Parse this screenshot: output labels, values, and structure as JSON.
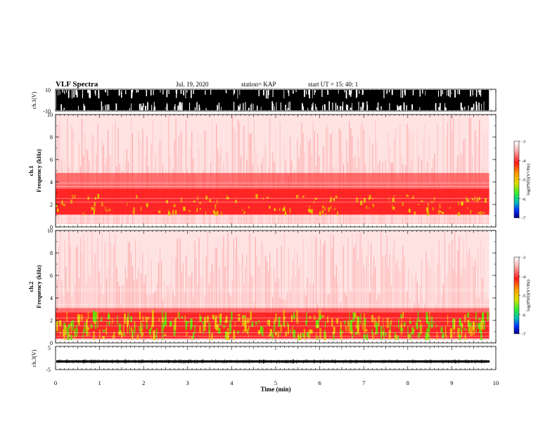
{
  "header": {
    "title": "VLF Spectra",
    "date": "Jul. 19, 2020",
    "station": "station= KAP",
    "start": "start UT =  15: 40: 1"
  },
  "chart_data": [
    {
      "type": "line",
      "name": "ch1-waveform",
      "ylabel": "ch.1(V)",
      "ylim": [
        -10,
        10
      ],
      "yticks": [
        "10",
        "-10"
      ],
      "xlim": [
        0,
        10
      ],
      "note": "waveform saturated to limits"
    },
    {
      "type": "heatmap",
      "name": "ch1-spectrogram",
      "ylabel": "ch.1\nFrequency (kHz)",
      "ylim": [
        0,
        10
      ],
      "yticks": [
        0,
        2,
        4,
        6,
        8,
        10
      ],
      "xlim": [
        0,
        9.85
      ],
      "band_center_khz": 2.2,
      "colorbar": {
        "label": "log(PSD)(V²/Hz)",
        "range": [
          -7,
          -3
        ],
        "ticks": [
          "-3",
          "-4",
          "-5",
          "-6",
          "-7"
        ]
      }
    },
    {
      "type": "heatmap",
      "name": "ch2-spectrogram",
      "ylabel": "ch.2\nFrequency (kHz)",
      "ylim": [
        0,
        10
      ],
      "yticks": [
        0,
        2,
        4,
        6,
        8,
        10
      ],
      "xlim": [
        0,
        9.85
      ],
      "band_center_khz": 1.5,
      "colorbar": {
        "label": "log(PSD)(V²/Hz)",
        "range": [
          -7,
          -3
        ],
        "ticks": [
          "-3",
          "-4",
          "-5",
          "-6",
          "-7"
        ]
      }
    },
    {
      "type": "line",
      "name": "ch3-waveform",
      "ylabel": "ch.3(V)",
      "ylim": [
        -5,
        5
      ],
      "yticks": [
        "5",
        "-5"
      ],
      "xlim": [
        0,
        10
      ],
      "value_band": [
        -2,
        -1
      ]
    }
  ],
  "xaxis": {
    "label": "Time (min)",
    "ticks": [
      "0",
      "1",
      "2",
      "3",
      "4",
      "5",
      "6",
      "7",
      "8",
      "9",
      "10"
    ]
  },
  "colors": {
    "spec_red": "#ff1a1a",
    "spec_pink": "#ffb3b3",
    "spec_yellow": "#e6d400",
    "spec_green": "#55ee00"
  }
}
